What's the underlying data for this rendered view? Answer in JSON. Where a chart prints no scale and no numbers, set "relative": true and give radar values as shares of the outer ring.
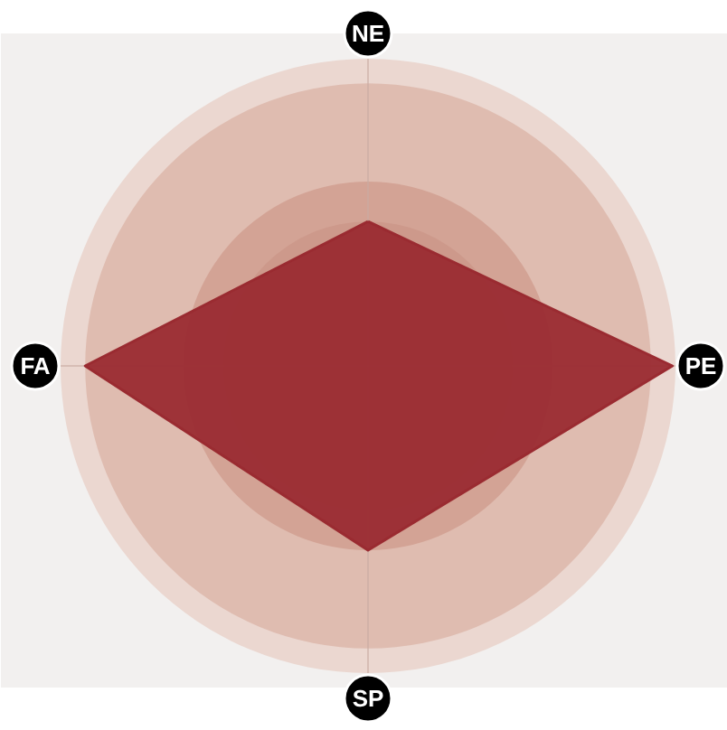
{
  "chart_data": {
    "type": "radar",
    "relative": true,
    "categories": [
      "NE",
      "PE",
      "SP",
      "FA"
    ],
    "series": [
      {
        "color": "#9a2b31",
        "values": [
          0.47,
          0.99,
          0.6,
          0.92
        ]
      }
    ]
  }
}
